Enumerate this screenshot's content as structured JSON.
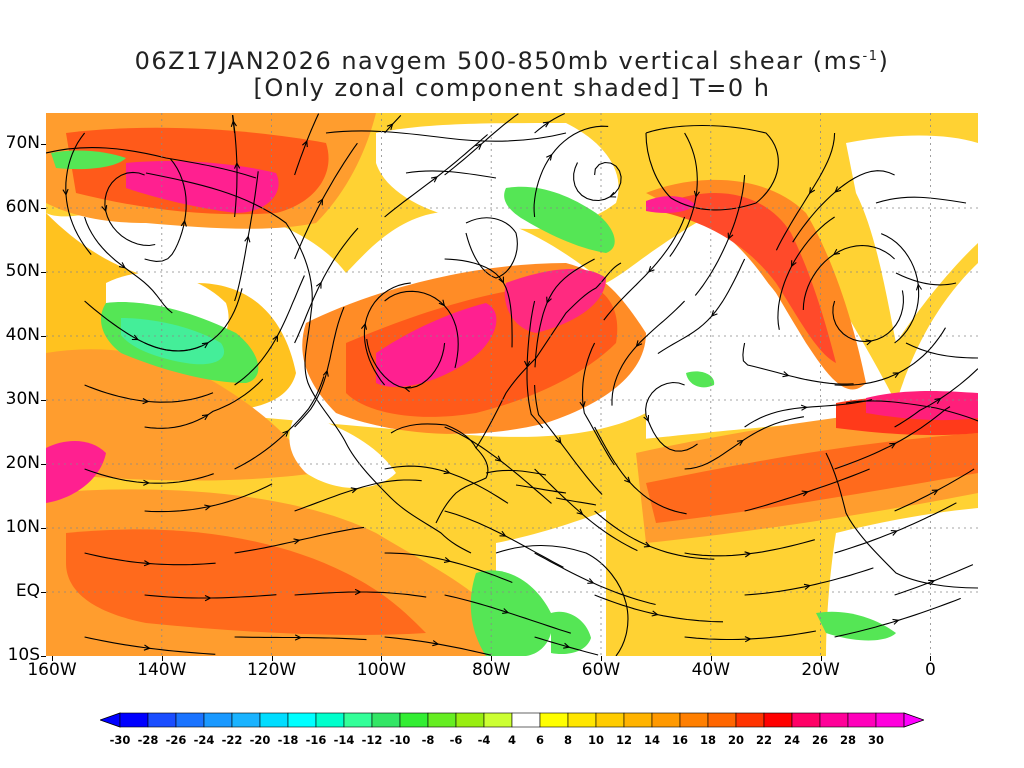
{
  "title": {
    "line1_prefix": "06Z17JAN2026 navgem 500-850mb vertical shear (ms",
    "line1_sup": "-1",
    "line1_suffix": ")",
    "line2": "[Only zonal component shaded] T=0 h"
  },
  "axes": {
    "lat_labels": [
      "70N",
      "60N",
      "50N",
      "40N",
      "30N",
      "20N",
      "10N",
      "EQ",
      "10S"
    ],
    "lon_labels": [
      "160W",
      "140W",
      "120W",
      "100W",
      "80W",
      "60W",
      "40W",
      "20W",
      "0"
    ]
  },
  "colorbar": {
    "labels": [
      "-30",
      "-28",
      "-26",
      "-24",
      "-22",
      "-20",
      "-18",
      "-16",
      "-14",
      "-12",
      "-10",
      "-8",
      "-6",
      "-4",
      "4",
      "6",
      "8",
      "10",
      "12",
      "14",
      "16",
      "18",
      "20",
      "22",
      "24",
      "26",
      "28",
      "30"
    ],
    "colors": [
      "#0000ff",
      "#1a4dff",
      "#1a73ff",
      "#1a99ff",
      "#1ab3ff",
      "#00ddff",
      "#00ffff",
      "#00ffcc",
      "#33ff99",
      "#33e666",
      "#33ee33",
      "#66ee22",
      "#99ee11",
      "#ccff33",
      "#ffffff",
      "#ffff00",
      "#ffe600",
      "#ffcc00",
      "#ffb300",
      "#ff9900",
      "#ff7f00",
      "#ff6600",
      "#ff3300",
      "#ff0000",
      "#ff0066",
      "#ff0099",
      "#ff00bb",
      "#ff00dd"
    ],
    "left_arrow_color": "#0000ff",
    "right_arrow_color": "#ff00ff"
  },
  "colors": {
    "orange": "#ff9d2e",
    "red_orange": "#ff6a1c",
    "magenta": "#ff2090",
    "yellow": "#ffcc22",
    "green": "#55e655",
    "aqua_green": "#44ee99"
  }
}
